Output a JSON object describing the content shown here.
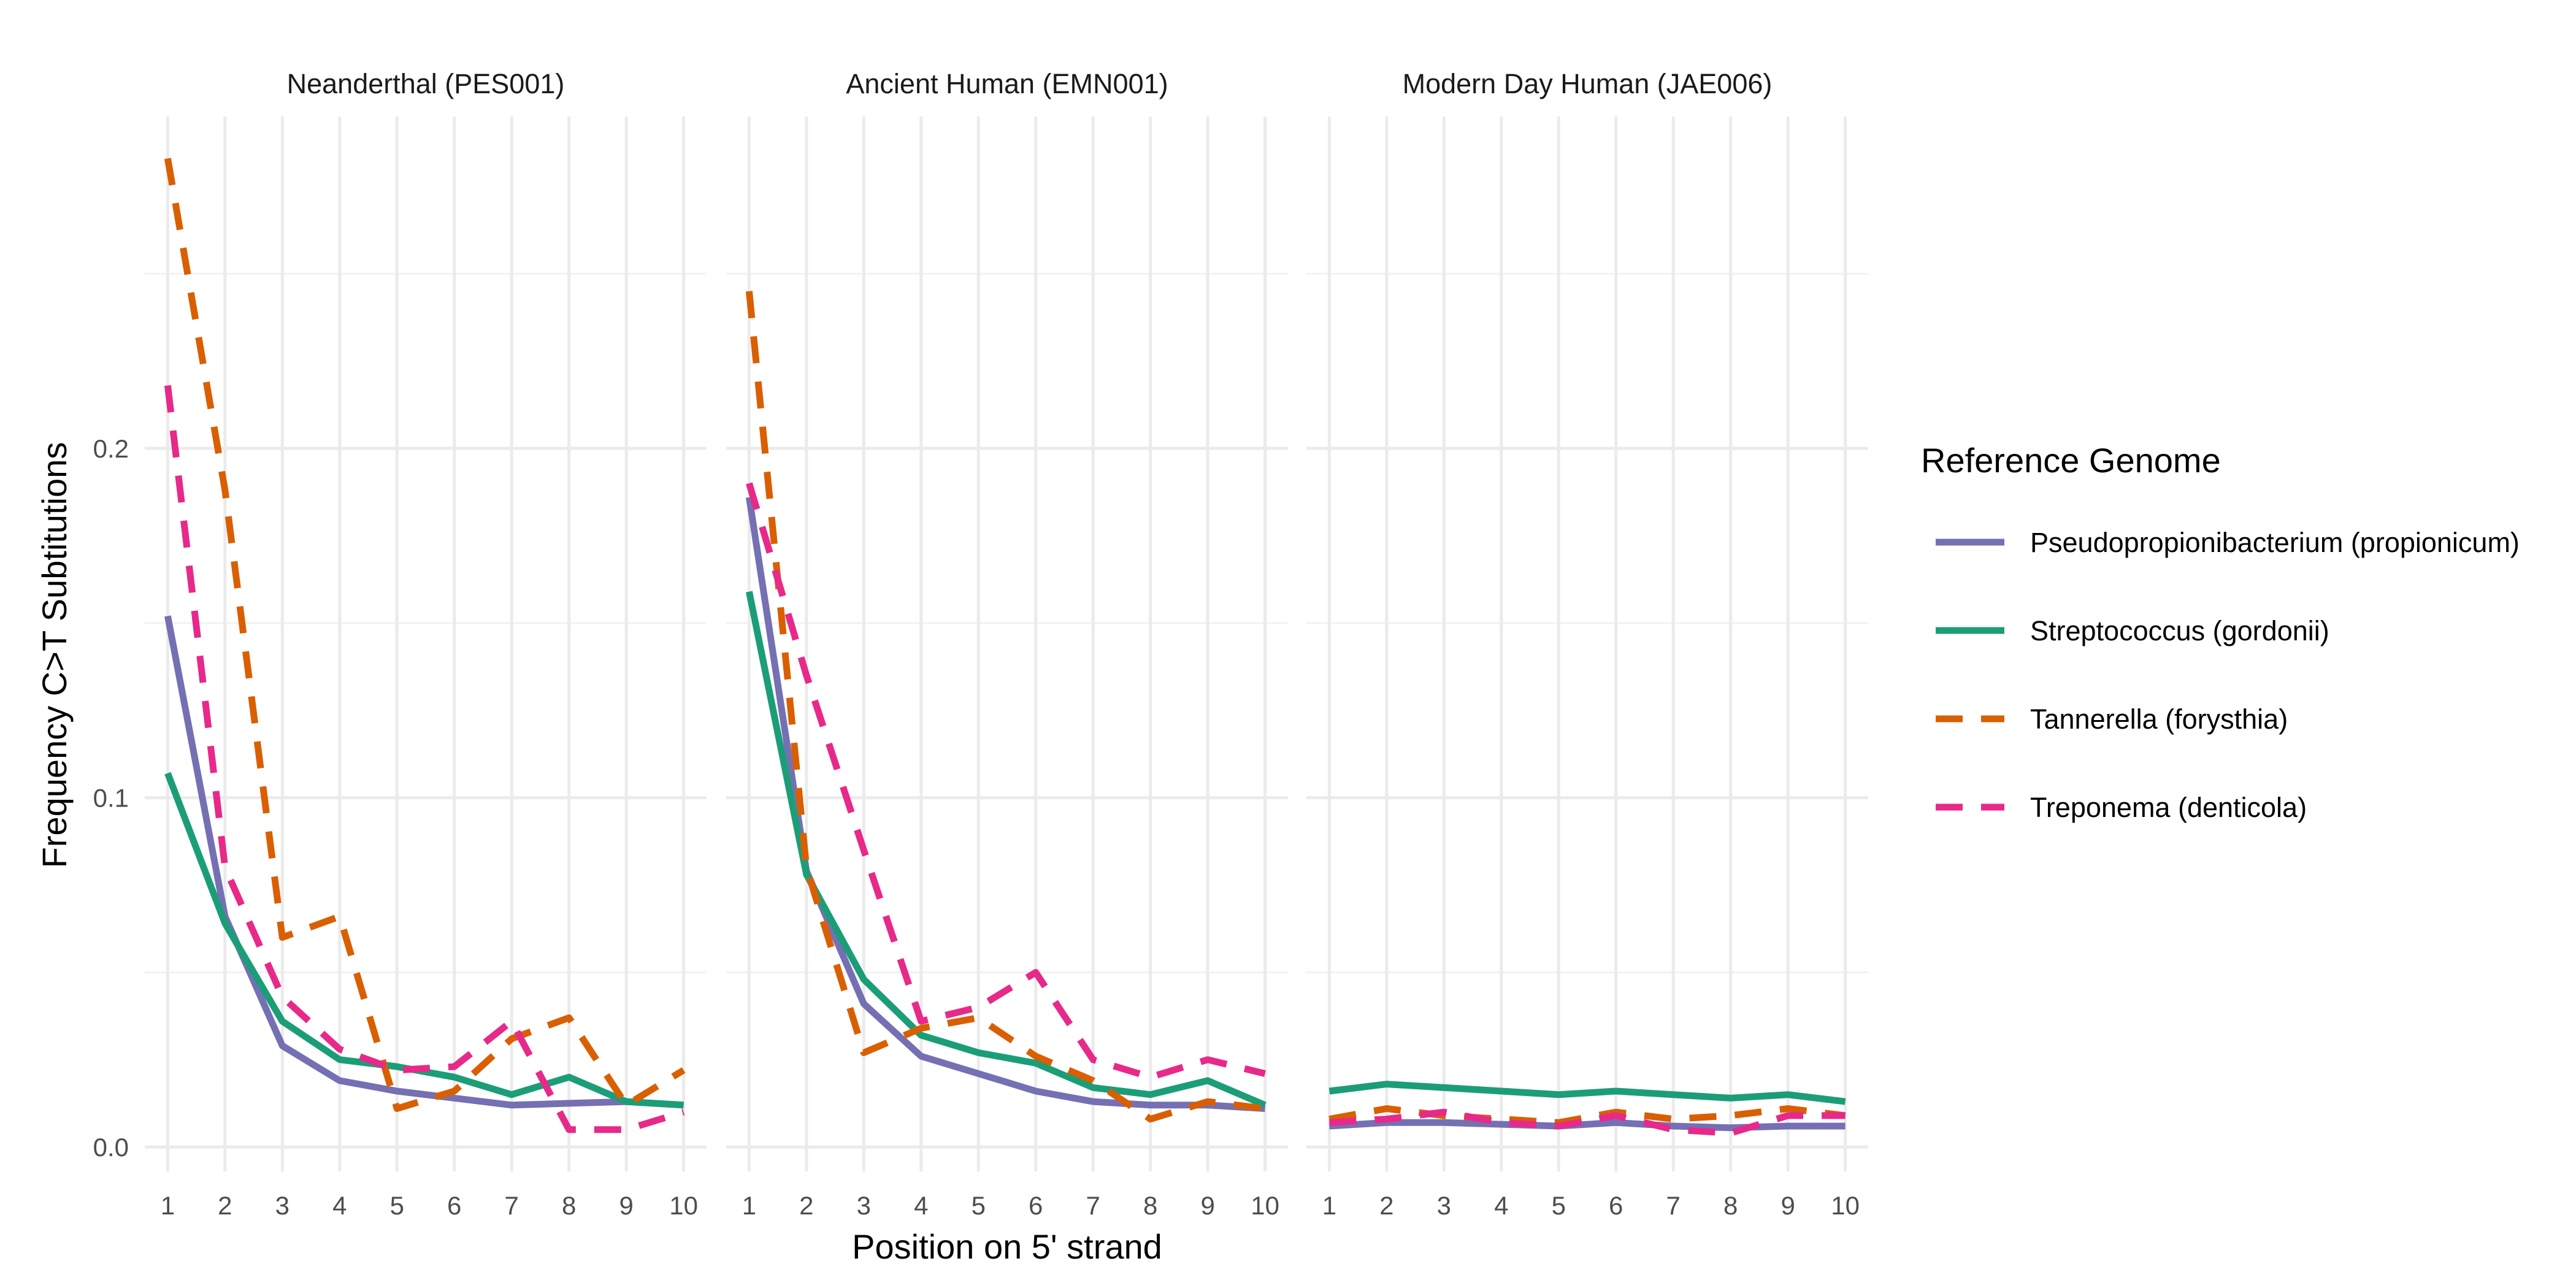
{
  "chart_data": {
    "type": "line",
    "facet_titles": [
      "Neanderthal (PES001)",
      "Ancient Human (EMN001)",
      "Modern Day Human (JAE006)"
    ],
    "x": [
      1,
      2,
      3,
      4,
      5,
      6,
      7,
      8,
      9,
      10
    ],
    "x_tick_labels": [
      "1",
      "2",
      "3",
      "4",
      "5",
      "6",
      "7",
      "8",
      "9",
      "10"
    ],
    "y_ticks": [
      0.0,
      0.1,
      0.2
    ],
    "y_tick_labels": [
      "0.0",
      "0.1",
      "0.2"
    ],
    "xlim": [
      0.6,
      10.4
    ],
    "ylim": [
      -0.007,
      0.295
    ],
    "xlabel": "Position on 5' strand",
    "ylabel": "Frequency C>T Subtitutions",
    "grid": true,
    "legend": {
      "title": "Reference Genome",
      "position": "right"
    },
    "series": [
      {
        "name": "Pseudopropionibacterium (propionicum)",
        "color": "#7570b3",
        "dash": "solid",
        "facets": [
          [
            0.152,
            0.066,
            0.029,
            0.019,
            0.016,
            0.014,
            0.012,
            0.0125,
            0.013,
            0.012
          ],
          [
            0.186,
            0.079,
            0.041,
            0.026,
            0.021,
            0.016,
            0.013,
            0.012,
            0.012,
            0.011
          ],
          [
            0.006,
            0.007,
            0.007,
            0.0065,
            0.006,
            0.007,
            0.006,
            0.0055,
            0.006,
            0.006
          ]
        ]
      },
      {
        "name": "Streptococcus (gordonii)",
        "color": "#1b9e77",
        "dash": "solid",
        "facets": [
          [
            0.107,
            0.064,
            0.036,
            0.025,
            0.023,
            0.02,
            0.015,
            0.02,
            0.013,
            0.012
          ],
          [
            0.159,
            0.078,
            0.048,
            0.032,
            0.027,
            0.024,
            0.017,
            0.015,
            0.019,
            0.012
          ],
          [
            0.016,
            0.018,
            0.017,
            0.016,
            0.015,
            0.016,
            0.015,
            0.014,
            0.015,
            0.013
          ]
        ]
      },
      {
        "name": "Tannerella (forysthia)",
        "color": "#d95f02",
        "dash": "dashed",
        "facets": [
          [
            0.283,
            0.188,
            0.06,
            0.066,
            0.011,
            0.016,
            0.031,
            0.037,
            0.012,
            0.022
          ],
          [
            0.245,
            0.08,
            0.027,
            0.034,
            0.037,
            0.026,
            0.019,
            0.008,
            0.013,
            0.011
          ],
          [
            0.008,
            0.011,
            0.009,
            0.008,
            0.007,
            0.01,
            0.008,
            0.009,
            0.011,
            0.009
          ]
        ]
      },
      {
        "name": "Treponema (denticola)",
        "color": "#e7298a",
        "dash": "dashed",
        "facets": [
          [
            0.218,
            0.08,
            0.043,
            0.028,
            0.022,
            0.023,
            0.036,
            0.005,
            0.005,
            0.01
          ],
          [
            0.19,
            0.135,
            0.085,
            0.036,
            0.04,
            0.05,
            0.025,
            0.02,
            0.025,
            0.021
          ],
          [
            0.007,
            0.008,
            0.01,
            0.007,
            0.006,
            0.009,
            0.005,
            0.004,
            0.009,
            0.009
          ]
        ]
      }
    ]
  }
}
